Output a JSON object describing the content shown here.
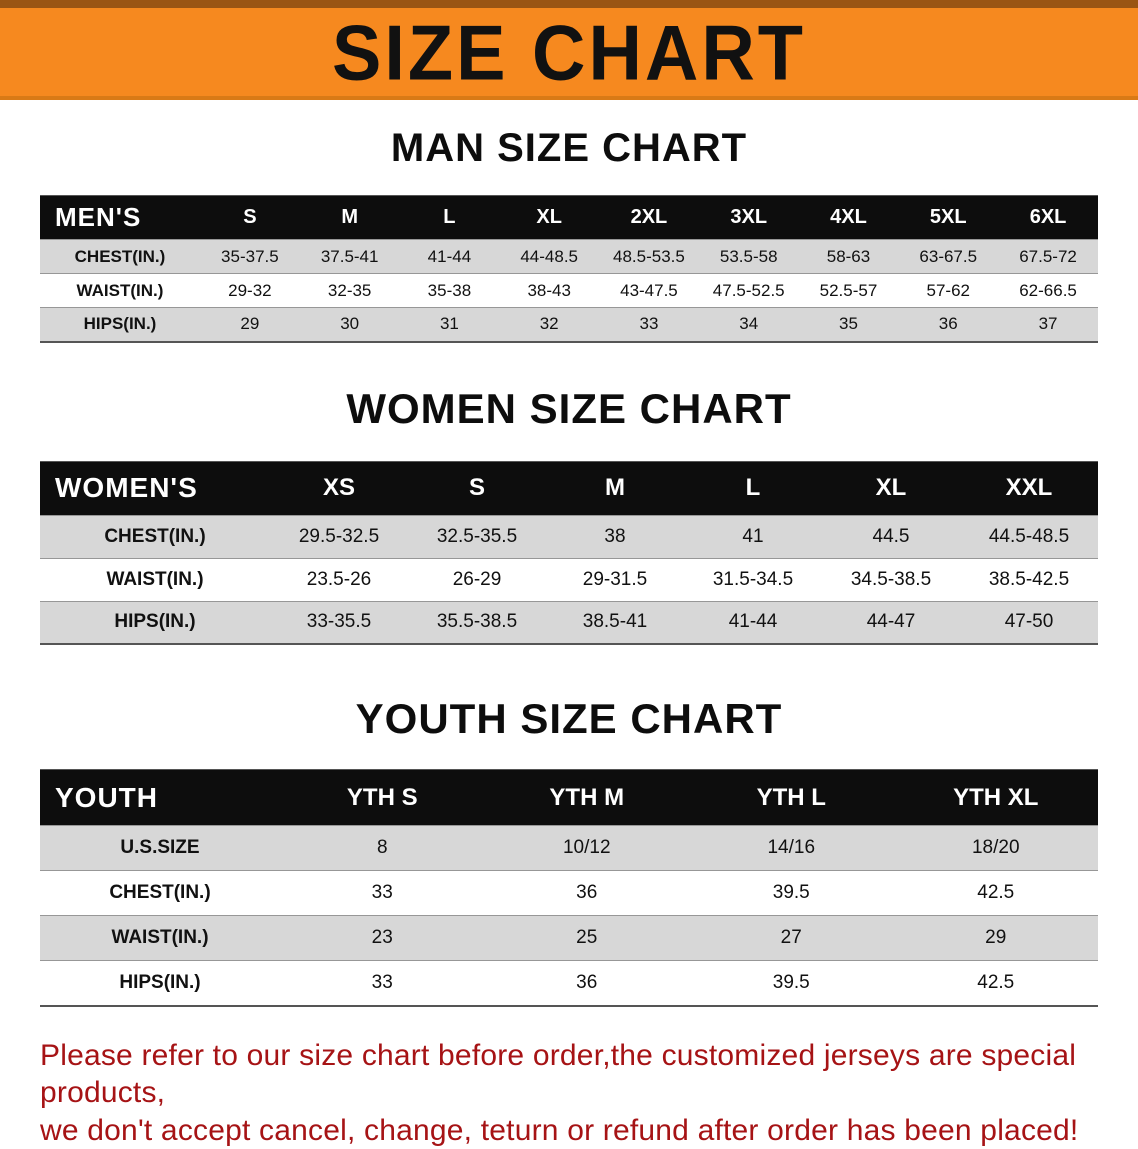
{
  "banner": {
    "title": "SIZE CHART"
  },
  "colors": {
    "banner_bg": "#f6891f",
    "table_header_bg": "#0d0d0d",
    "row_stripe": "#d7d7d7",
    "footer_text": "#a61315"
  },
  "sections": {
    "men": {
      "heading": "MAN SIZE CHART",
      "table": {
        "corner": "MEN'S",
        "sizes": [
          "S",
          "M",
          "L",
          "XL",
          "2XL",
          "3XL",
          "4XL",
          "5XL",
          "6XL"
        ],
        "rows": [
          {
            "label": "CHEST(IN.)",
            "values": [
              "35-37.5",
              "37.5-41",
              "41-44",
              "44-48.5",
              "48.5-53.5",
              "53.5-58",
              "58-63",
              "63-67.5",
              "67.5-72"
            ]
          },
          {
            "label": "WAIST(IN.)",
            "values": [
              "29-32",
              "32-35",
              "35-38",
              "38-43",
              "43-47.5",
              "47.5-52.5",
              "52.5-57",
              "57-62",
              "62-66.5"
            ]
          },
          {
            "label": "HIPS(IN.)",
            "values": [
              "29",
              "30",
              "31",
              "32",
              "33",
              "34",
              "35",
              "36",
              "37"
            ]
          }
        ]
      }
    },
    "women": {
      "heading": "WOMEN SIZE CHART",
      "table": {
        "corner": "WOMEN'S",
        "sizes": [
          "XS",
          "S",
          "M",
          "L",
          "XL",
          "XXL"
        ],
        "rows": [
          {
            "label": "CHEST(IN.)",
            "values": [
              "29.5-32.5",
              "32.5-35.5",
              "38",
              "41",
              "44.5",
              "44.5-48.5"
            ]
          },
          {
            "label": "WAIST(IN.)",
            "values": [
              "23.5-26",
              "26-29",
              "29-31.5",
              "31.5-34.5",
              "34.5-38.5",
              "38.5-42.5"
            ]
          },
          {
            "label": "HIPS(IN.)",
            "values": [
              "33-35.5",
              "35.5-38.5",
              "38.5-41",
              "41-44",
              "44-47",
              "47-50"
            ]
          }
        ]
      }
    },
    "youth": {
      "heading": "YOUTH SIZE CHART",
      "table": {
        "corner": "YOUTH",
        "sizes": [
          "YTH S",
          "YTH M",
          "YTH L",
          "YTH XL"
        ],
        "rows": [
          {
            "label": "U.S.SIZE",
            "values": [
              "8",
              "10/12",
              "14/16",
              "18/20"
            ]
          },
          {
            "label": "CHEST(IN.)",
            "values": [
              "33",
              "36",
              "39.5",
              "42.5"
            ]
          },
          {
            "label": "WAIST(IN.)",
            "values": [
              "23",
              "25",
              "27",
              "29"
            ]
          },
          {
            "label": "HIPS(IN.)",
            "values": [
              "33",
              "36",
              "39.5",
              "42.5"
            ]
          }
        ]
      }
    }
  },
  "footer": {
    "line1": "Please refer to our size chart before order,the customized jerseys are special products,",
    "line2": "we don't accept cancel, change, teturn or refund after order has been placed!"
  }
}
